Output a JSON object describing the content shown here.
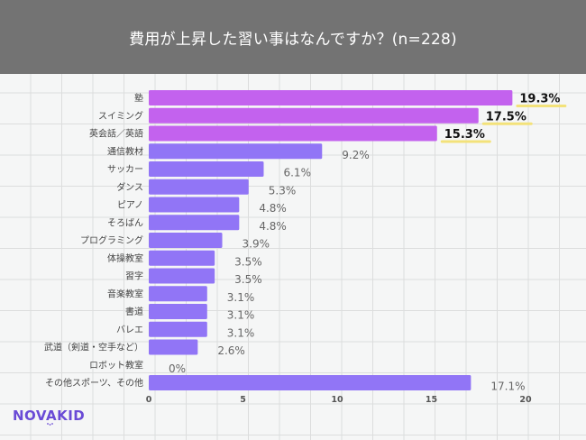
{
  "chart_data": {
    "type": "bar",
    "orientation": "horizontal",
    "title": "費用が上昇した習い事はなんですか？(n=228)",
    "xlabel": "",
    "ylabel": "",
    "xlim": [
      0,
      20
    ],
    "xticks": [
      "0",
      "5",
      "10",
      "15",
      "20"
    ],
    "grid": true,
    "categories": [
      "塾",
      "スイミング",
      "英会話／英語",
      "通信教材",
      "サッカー",
      "ダンス",
      "ピアノ",
      "そろばん",
      "プログラミング",
      "体操教室",
      "習字",
      "音楽教室",
      "書道",
      "バレエ",
      "武道（剣道・空手など）",
      "ロボット教室",
      "その他スポーツ、その他"
    ],
    "values": [
      19.3,
      17.5,
      15.3,
      9.2,
      6.1,
      5.3,
      4.8,
      4.8,
      3.9,
      3.5,
      3.5,
      3.1,
      3.1,
      3.1,
      2.6,
      0,
      17.1
    ],
    "value_labels": [
      "19.3%",
      "17.5%",
      "15.3%",
      "9.2%",
      "6.1%",
      "5.3%",
      "4.8%",
      "4.8%",
      "3.9%",
      "3.5%",
      "3.5%",
      "3.1%",
      "3.1%",
      "3.1%",
      "2.6%",
      "0%",
      "17.1%"
    ],
    "highlighted_top": 3,
    "colors": {
      "highlight_bar": "#c362ee",
      "normal_bar": "#9175f6",
      "highlight_underline": "#f3e27a",
      "header_bg": "#737373"
    }
  },
  "brand": {
    "logo_text": "NOVAKID",
    "color": "#6a4bd6"
  }
}
